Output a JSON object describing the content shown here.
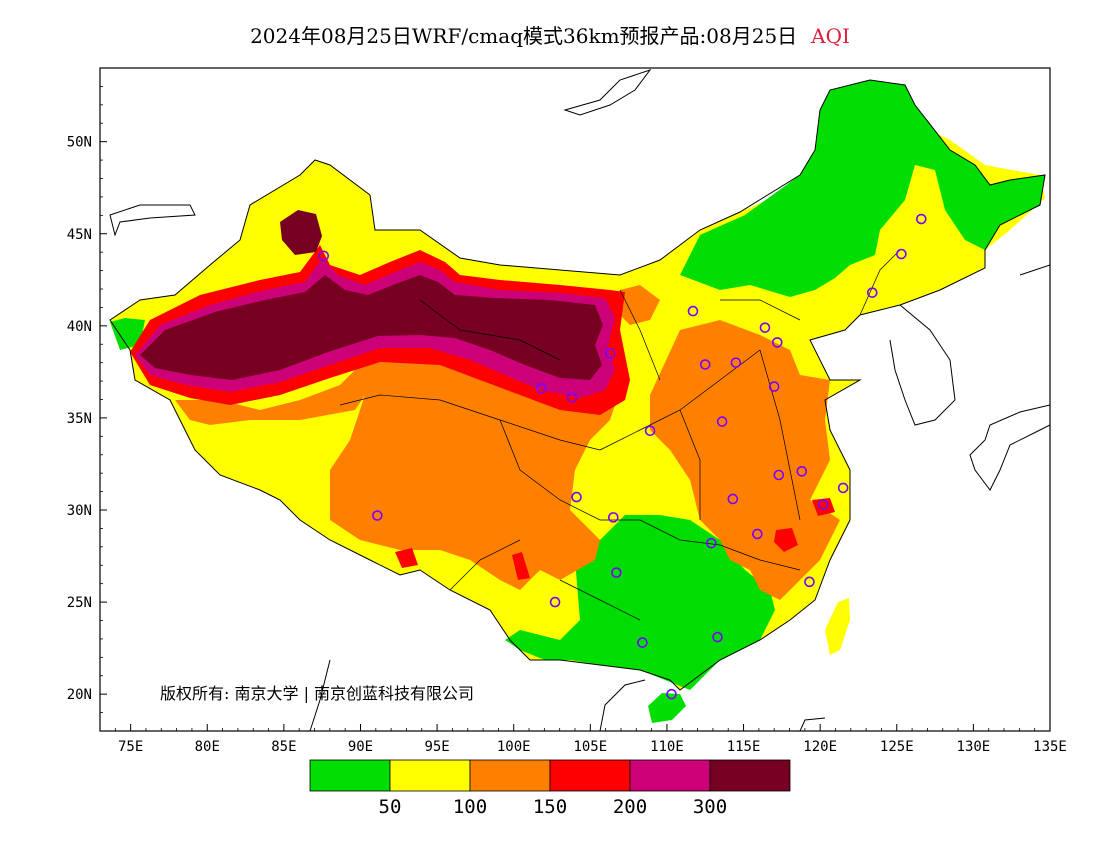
{
  "title": {
    "text": "2024年08月25日WRF/cmaq模式36km预报产品:08月25日",
    "tag": "AQI",
    "tag_color": "#e0203a"
  },
  "axes": {
    "lon_labels": [
      "75E",
      "80E",
      "85E",
      "90E",
      "95E",
      "100E",
      "105E",
      "110E",
      "115E",
      "120E",
      "125E",
      "130E",
      "135E"
    ],
    "lat_labels": [
      "50N",
      "45N",
      "40N",
      "35N",
      "30N",
      "25N",
      "20N"
    ],
    "lon_range": [
      73,
      135
    ],
    "lat_range": [
      18,
      54
    ]
  },
  "legend": {
    "colors": [
      "#00dd00",
      "#ffff00",
      "#ff8000",
      "#ff0000",
      "#cc0077",
      "#770022"
    ],
    "labels": [
      "50",
      "100",
      "150",
      "200",
      "300"
    ]
  },
  "copyright": "版权所有: 南京大学 | 南京创蓝科技有限公司",
  "stations": [
    {
      "lon": 87.6,
      "lat": 43.8
    },
    {
      "lon": 91.1,
      "lat": 29.7
    },
    {
      "lon": 101.8,
      "lat": 36.6
    },
    {
      "lon": 103.8,
      "lat": 36.1
    },
    {
      "lon": 106.3,
      "lat": 38.5
    },
    {
      "lon": 111.7,
      "lat": 40.8
    },
    {
      "lon": 112.5,
      "lat": 37.9
    },
    {
      "lon": 114.5,
      "lat": 38.0
    },
    {
      "lon": 116.4,
      "lat": 39.9
    },
    {
      "lon": 117.2,
      "lat": 39.1
    },
    {
      "lon": 117.0,
      "lat": 36.7
    },
    {
      "lon": 113.6,
      "lat": 34.8
    },
    {
      "lon": 108.9,
      "lat": 34.3
    },
    {
      "lon": 104.1,
      "lat": 30.7
    },
    {
      "lon": 106.5,
      "lat": 29.6
    },
    {
      "lon": 106.7,
      "lat": 26.6
    },
    {
      "lon": 102.7,
      "lat": 25.0
    },
    {
      "lon": 108.4,
      "lat": 22.8
    },
    {
      "lon": 113.3,
      "lat": 23.1
    },
    {
      "lon": 110.3,
      "lat": 20.0
    },
    {
      "lon": 112.9,
      "lat": 28.2
    },
    {
      "lon": 114.3,
      "lat": 30.6
    },
    {
      "lon": 115.9,
      "lat": 28.7
    },
    {
      "lon": 117.3,
      "lat": 31.9
    },
    {
      "lon": 118.8,
      "lat": 32.1
    },
    {
      "lon": 120.2,
      "lat": 30.3
    },
    {
      "lon": 121.5,
      "lat": 31.2
    },
    {
      "lon": 119.3,
      "lat": 26.1
    },
    {
      "lon": 123.4,
      "lat": 41.8
    },
    {
      "lon": 125.3,
      "lat": 43.9
    },
    {
      "lon": 126.6,
      "lat": 45.8
    }
  ]
}
